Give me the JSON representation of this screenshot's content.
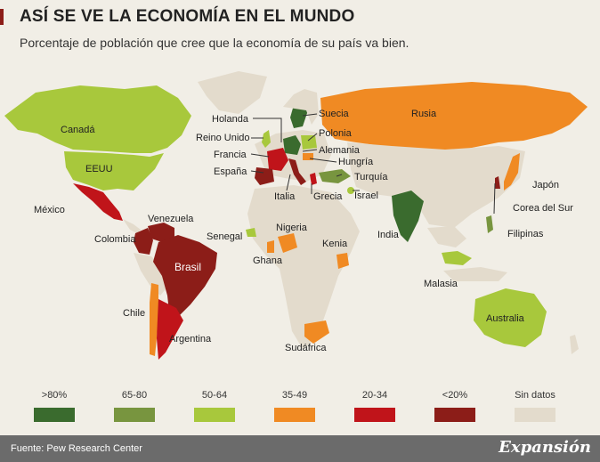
{
  "header": {
    "title": "ASÍ SE VE LA ECONOMÍA EN EL MUNDO",
    "subtitle": "Porcentaje de población que cree que la economía de su país va bien."
  },
  "colors": {
    "over80": "#3a6b2e",
    "r65_80": "#78953f",
    "r50_64": "#a8c83c",
    "r35_49": "#f08a23",
    "r20_34": "#c0141a",
    "under20": "#8c1d18",
    "no_data": "#e3dbcc"
  },
  "labels": {
    "canada": "Canadá",
    "eeuu": "EEUU",
    "mexico": "México",
    "venezuela": "Venezuela",
    "colombia": "Colombia",
    "brasil": "Brasil",
    "chile": "Chile",
    "argentina": "Argentina",
    "holanda": "Holanda",
    "reino_unido": "Reino Unido",
    "francia": "Francia",
    "espana": "España",
    "suecia": "Suecia",
    "polonia": "Polonia",
    "alemania": "Alemania",
    "hungria": "Hungría",
    "turquia": "Turquía",
    "israel": "Israel",
    "italia": "Italia",
    "grecia": "Grecia",
    "rusia": "Rusia",
    "japon": "Japón",
    "corea": "Corea del Sur",
    "india": "India",
    "filipinas": "Filipinas",
    "malasia": "Malasia",
    "australia": "Australia",
    "senegal": "Senegal",
    "nigeria": "Nigeria",
    "kenia": "Kenia",
    "ghana": "Ghana",
    "sudafrica": "Sudáfrica"
  },
  "legend": [
    {
      "label": ">80%",
      "color": "#3a6b2e"
    },
    {
      "label": "65-80",
      "color": "#78953f"
    },
    {
      "label": "50-64",
      "color": "#a8c83c"
    },
    {
      "label": "35-49",
      "color": "#f08a23"
    },
    {
      "label": "20-34",
      "color": "#c0141a"
    },
    {
      "label": "<20%",
      "color": "#8c1d18"
    },
    {
      "label": "Sin datos",
      "color": "#e3dbcc"
    }
  ],
  "footer": {
    "source": "Fuente: Pew Research Center",
    "brand": "Expansión"
  }
}
